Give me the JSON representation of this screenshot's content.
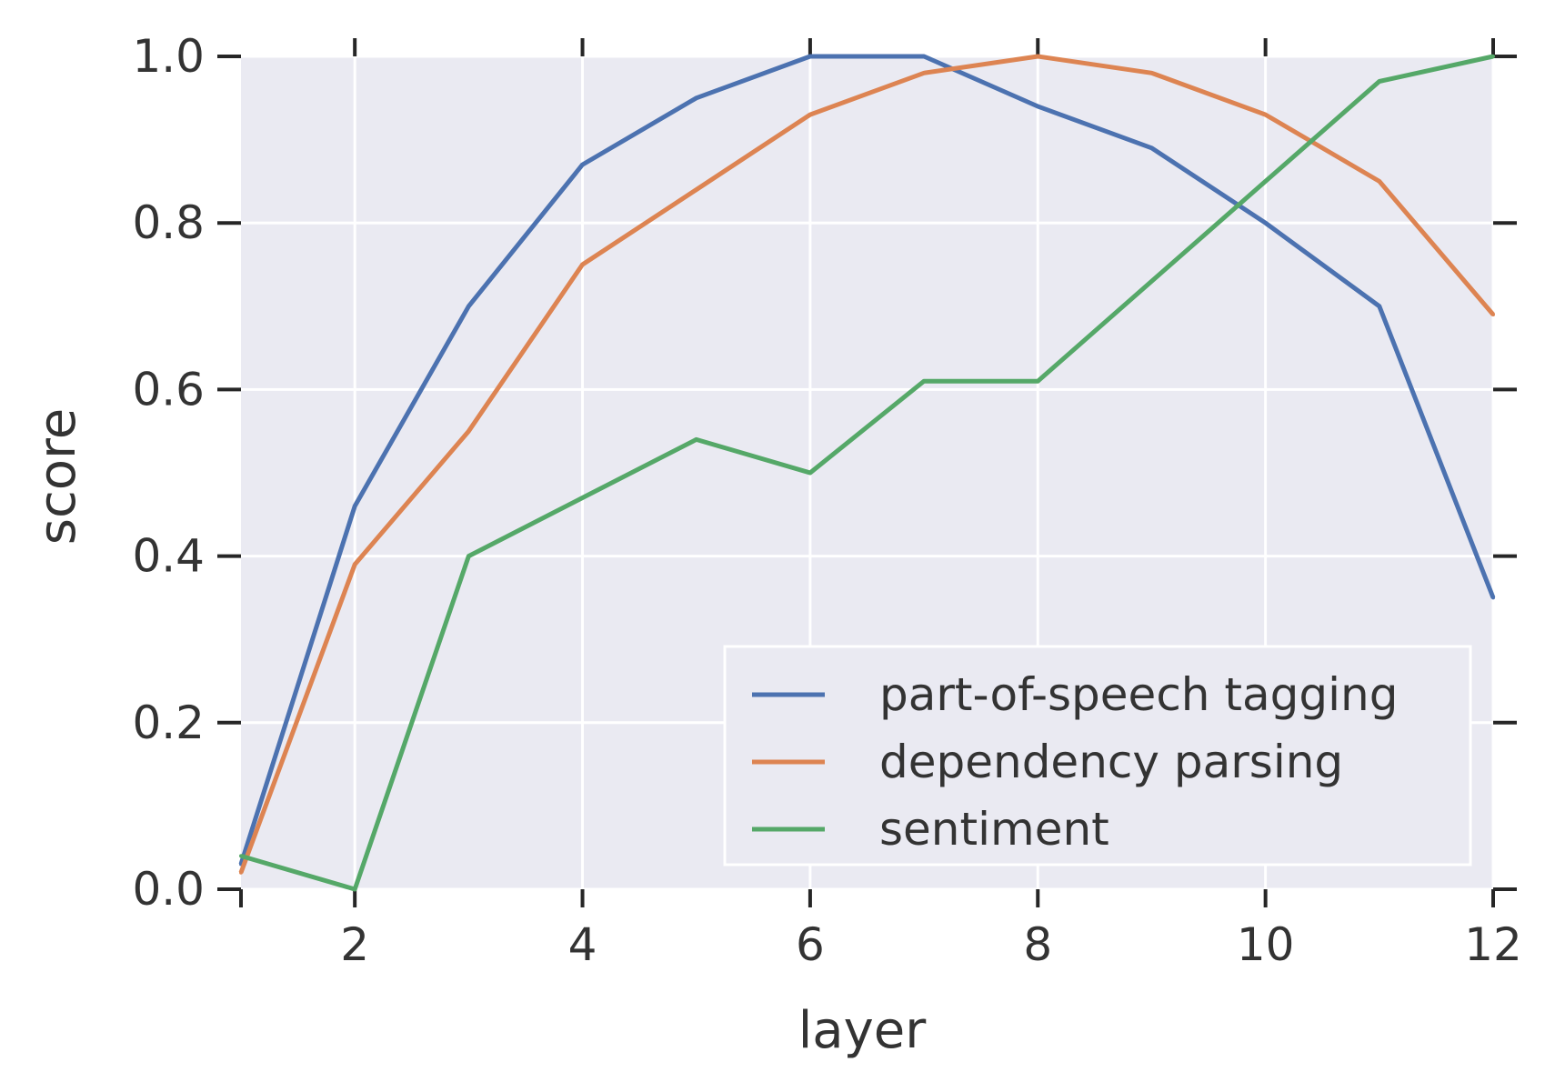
{
  "chart_data": {
    "type": "line",
    "title": "",
    "xlabel": "layer",
    "ylabel": "score",
    "xlim": [
      1,
      12
    ],
    "ylim": [
      0.0,
      1.0
    ],
    "xticks": [
      2,
      4,
      6,
      8,
      10,
      12
    ],
    "xtick_labels": [
      "2",
      "4",
      "6",
      "8",
      "10",
      "12"
    ],
    "yticks": [
      0.0,
      0.2,
      0.4,
      0.6,
      0.8,
      1.0
    ],
    "ytick_labels": [
      "0.0",
      "0.2",
      "0.4",
      "0.6",
      "0.8",
      "1.0"
    ],
    "grid": true,
    "legend_position": "lower-right",
    "x": [
      1,
      2,
      3,
      4,
      5,
      6,
      7,
      8,
      9,
      10,
      11,
      12
    ],
    "series": [
      {
        "name": "part-of-speech tagging",
        "color": "#4c72b0",
        "values": [
          0.03,
          0.46,
          0.7,
          0.87,
          0.95,
          1.0,
          1.0,
          0.94,
          0.89,
          0.8,
          0.7,
          0.35
        ]
      },
      {
        "name": "dependency parsing",
        "color": "#dd8452",
        "values": [
          0.02,
          0.39,
          0.55,
          0.75,
          0.84,
          0.93,
          0.98,
          1.0,
          0.98,
          0.93,
          0.85,
          0.69
        ]
      },
      {
        "name": "sentiment",
        "color": "#55a868",
        "values": [
          0.04,
          0.0,
          0.4,
          0.47,
          0.54,
          0.5,
          0.61,
          0.61,
          0.73,
          0.85,
          0.97,
          1.0
        ]
      }
    ],
    "colors": {
      "plot_background": "#eaeaf2",
      "grid": "#ffffff",
      "text": "#333333",
      "tick": "#262626"
    }
  }
}
